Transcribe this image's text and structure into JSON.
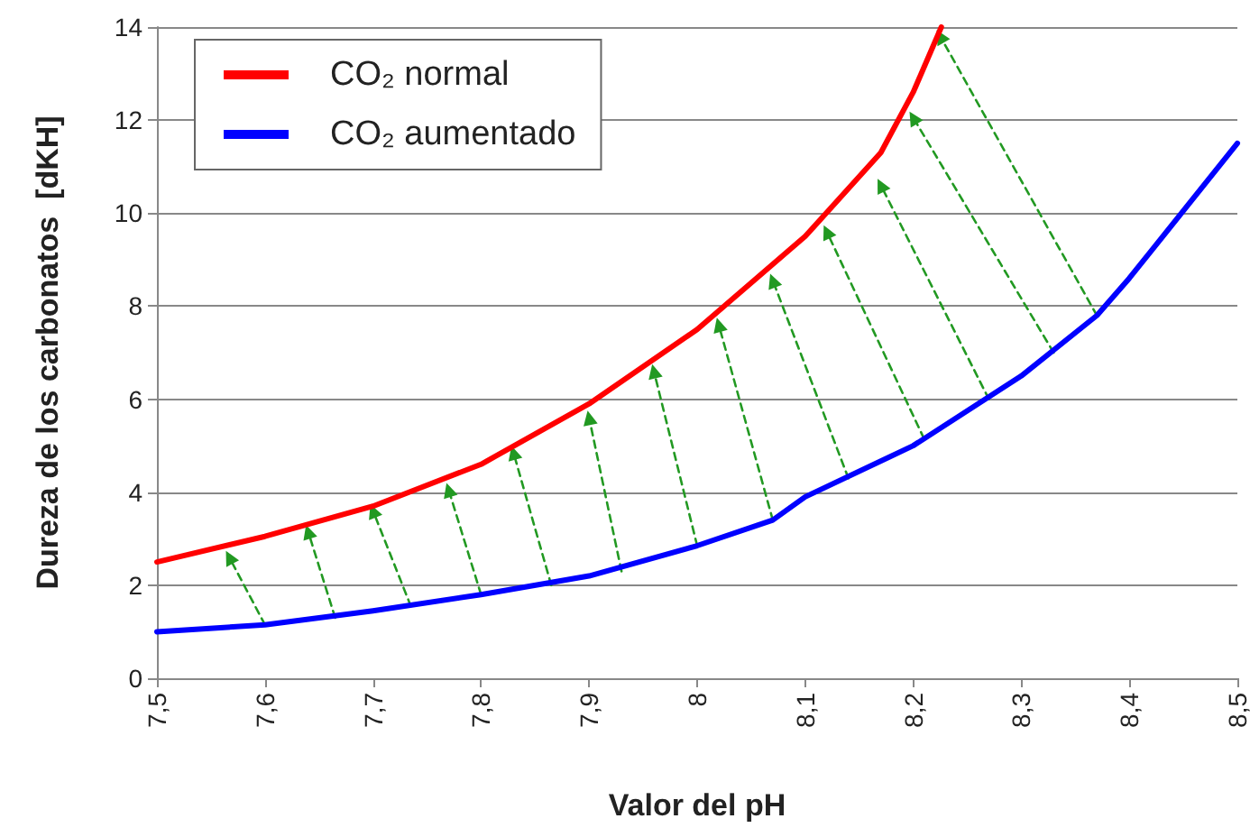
{
  "chart_data": {
    "type": "line",
    "xlabel": "Valor del pH",
    "ylabel": "Dureza de los carbonatos  [dKH]",
    "xlim": [
      7.5,
      8.5
    ],
    "xticks": [
      {
        "value": 7.5,
        "label": "7,5"
      },
      {
        "value": 7.6,
        "label": "7,6"
      },
      {
        "value": 7.7,
        "label": "7,7"
      },
      {
        "value": 7.8,
        "label": "7,8"
      },
      {
        "value": 7.9,
        "label": "7,9"
      },
      {
        "value": 8,
        "label": "8"
      },
      {
        "value": 8.1,
        "label": "8,1"
      },
      {
        "value": 8.2,
        "label": "8,2"
      },
      {
        "value": 8.3,
        "label": "8,3"
      },
      {
        "value": 8.4,
        "label": "8,4"
      },
      {
        "value": 8.5,
        "label": "8,5"
      }
    ],
    "ylim": [
      0,
      14
    ],
    "yticks": [
      0,
      2,
      4,
      6,
      8,
      10,
      12,
      14
    ],
    "grid": "y",
    "legend": "top left",
    "marker": "none",
    "line_style": "solid",
    "series": [
      {
        "name": "CO₂ normal",
        "color": "#ff0000",
        "x": [
          7.5,
          7.6,
          7.7,
          7.8,
          7.9,
          8.0,
          8.1,
          8.17,
          8.2,
          8.226
        ],
        "values": [
          2.5,
          3.05,
          3.7,
          4.6,
          5.9,
          7.5,
          9.5,
          11.3,
          12.6,
          14
        ]
      },
      {
        "name": "CO₂ aumentado",
        "color": "#0000ff",
        "x": [
          7.5,
          7.6,
          7.7,
          7.8,
          7.9,
          8.0,
          8.07,
          8.1,
          8.2,
          8.3,
          8.37,
          8.4,
          8.5
        ],
        "values": [
          1.0,
          1.15,
          1.45,
          1.8,
          2.2,
          2.85,
          3.4,
          3.9,
          5.0,
          6.5,
          7.8,
          8.6,
          11.5
        ]
      },
      {
        "type": "line",
        "color": "#229922",
        "line_style": "dashed",
        "marker": "triangle",
        "x": [
          7.6,
          7.567
        ],
        "values": [
          1.15,
          2.6
        ]
      },
      {
        "type": "line",
        "color": "#229922",
        "line_style": "dashed",
        "marker": "triangle",
        "x": [
          7.665,
          7.64
        ],
        "values": [
          1.3,
          3.15
        ]
      },
      {
        "type": "line",
        "color": "#229922",
        "line_style": "dashed",
        "marker": "triangle",
        "x": [
          7.735,
          7.7
        ],
        "values": [
          1.55,
          3.6
        ]
      },
      {
        "type": "line",
        "color": "#229922",
        "line_style": "dashed",
        "marker": "triangle",
        "x": [
          7.8,
          7.77
        ],
        "values": [
          1.8,
          4.05
        ]
      },
      {
        "type": "line",
        "color": "#229922",
        "line_style": "dashed",
        "marker": "triangle",
        "x": [
          7.865,
          7.83
        ],
        "values": [
          2.0,
          4.85
        ]
      },
      {
        "type": "line",
        "color": "#229922",
        "line_style": "dashed",
        "marker": "triangle",
        "x": [
          7.93,
          7.9
        ],
        "values": [
          2.3,
          5.6
        ]
      },
      {
        "type": "line",
        "color": "#229922",
        "line_style": "dashed",
        "marker": "triangle",
        "x": [
          8.0,
          7.96
        ],
        "values": [
          2.85,
          6.6
        ]
      },
      {
        "type": "line",
        "color": "#229922",
        "line_style": "dashed",
        "marker": "triangle",
        "x": [
          8.07,
          8.02
        ],
        "values": [
          3.4,
          7.6
        ]
      },
      {
        "type": "line",
        "color": "#229922",
        "line_style": "dashed",
        "marker": "triangle",
        "x": [
          8.14,
          8.07
        ],
        "values": [
          4.3,
          8.55
        ]
      },
      {
        "type": "line",
        "color": "#229922",
        "line_style": "dashed",
        "marker": "triangle",
        "x": [
          8.21,
          8.12
        ],
        "values": [
          5.15,
          9.6
        ]
      },
      {
        "type": "line",
        "color": "#229922",
        "line_style": "dashed",
        "marker": "triangle",
        "x": [
          8.27,
          8.17
        ],
        "values": [
          6.0,
          10.6
        ]
      },
      {
        "type": "line",
        "color": "#229922",
        "line_style": "dashed",
        "marker": "triangle",
        "x": [
          8.33,
          8.2
        ],
        "values": [
          7.0,
          12.05
        ]
      },
      {
        "type": "line",
        "color": "#229922",
        "line_style": "dashed",
        "marker": "triangle",
        "x": [
          8.37,
          8.225
        ],
        "values": [
          7.8,
          13.8
        ]
      }
    ]
  }
}
